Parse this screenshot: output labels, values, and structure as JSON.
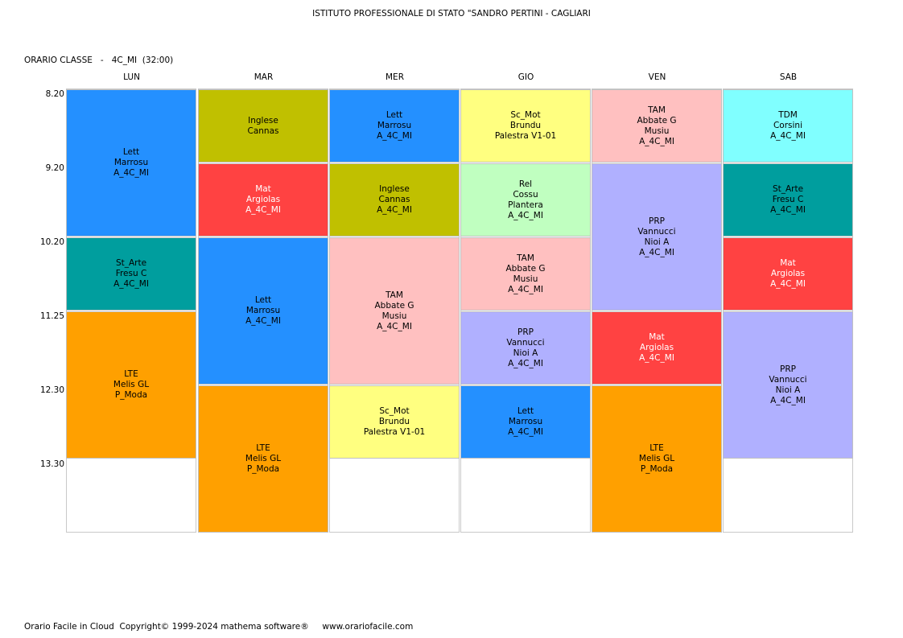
{
  "header": {
    "school": "ISTITUTO PROFESSIONALE DI STATO \"SANDRO PERTINI - CAGLIARI",
    "class_label": "ORARIO CLASSE   -   4C_MI  (32:00)"
  },
  "days": [
    "LUN",
    "MAR",
    "MER",
    "GIO",
    "VEN",
    "SAB"
  ],
  "times": [
    "8.20",
    "9.20",
    "10.20",
    "11.25",
    "12.30",
    "13.30"
  ],
  "colors": {
    "blue": "#2490ff",
    "olive": "#c0c000",
    "red": "#ff4242",
    "teal": "#009e9e",
    "orange": "#ffa000",
    "yellow": "#ffff80",
    "pink": "#ffc0c0",
    "lightgreen": "#c0ffc0",
    "lavender": "#b0b0ff",
    "cyan": "#80ffff"
  },
  "schedule": [
    [
      {
        "start": 0,
        "span": 2,
        "color": "blue",
        "lines": [
          "Lett",
          "Marrosu",
          "A_4C_MI"
        ]
      },
      {
        "start": 2,
        "span": 1,
        "color": "teal",
        "lines": [
          "St_Arte",
          "Fresu C",
          "A_4C_MI"
        ]
      },
      {
        "start": 3,
        "span": 2,
        "color": "orange",
        "lines": [
          "LTE",
          "Melis GL",
          "P_Moda"
        ]
      }
    ],
    [
      {
        "start": 0,
        "span": 1,
        "color": "olive",
        "lines": [
          "Inglese",
          "Cannas"
        ]
      },
      {
        "start": 1,
        "span": 1,
        "color": "red",
        "lines": [
          "Mat",
          "Argiolas",
          "A_4C_MI"
        ]
      },
      {
        "start": 2,
        "span": 2,
        "color": "blue",
        "lines": [
          "Lett",
          "Marrosu",
          "A_4C_MI"
        ]
      },
      {
        "start": 4,
        "span": 2,
        "color": "orange",
        "lines": [
          "LTE",
          "Melis GL",
          "P_Moda"
        ]
      }
    ],
    [
      {
        "start": 0,
        "span": 1,
        "color": "blue",
        "lines": [
          "Lett",
          "Marrosu",
          "A_4C_MI"
        ]
      },
      {
        "start": 1,
        "span": 1,
        "color": "olive",
        "lines": [
          "Inglese",
          "Cannas",
          "A_4C_MI"
        ]
      },
      {
        "start": 2,
        "span": 2,
        "color": "pink",
        "lines": [
          "TAM",
          "Abbate G",
          "Musiu",
          "A_4C_MI"
        ]
      },
      {
        "start": 4,
        "span": 1,
        "color": "yellow",
        "lines": [
          "Sc_Mot",
          "Brundu",
          "Palestra V1-01"
        ]
      }
    ],
    [
      {
        "start": 0,
        "span": 1,
        "color": "yellow",
        "lines": [
          "Sc_Mot",
          "Brundu",
          "Palestra V1-01"
        ]
      },
      {
        "start": 1,
        "span": 1,
        "color": "lightgreen",
        "lines": [
          "Rel",
          "Cossu",
          "Plantera",
          "A_4C_MI"
        ]
      },
      {
        "start": 2,
        "span": 1,
        "color": "pink",
        "lines": [
          "TAM",
          "Abbate G",
          "Musiu",
          "A_4C_MI"
        ]
      },
      {
        "start": 3,
        "span": 1,
        "color": "lavender",
        "lines": [
          "PRP",
          "Vannucci",
          "Nioi A",
          "A_4C_MI"
        ]
      },
      {
        "start": 4,
        "span": 1,
        "color": "blue",
        "lines": [
          "Lett",
          "Marrosu",
          "A_4C_MI"
        ]
      }
    ],
    [
      {
        "start": 0,
        "span": 1,
        "color": "pink",
        "lines": [
          "TAM",
          "Abbate G",
          "Musiu",
          "A_4C_MI"
        ]
      },
      {
        "start": 1,
        "span": 2,
        "color": "lavender",
        "lines": [
          "PRP",
          "Vannucci",
          "Nioi A",
          "A_4C_MI"
        ]
      },
      {
        "start": 3,
        "span": 1,
        "color": "red",
        "lines": [
          "Mat",
          "Argiolas",
          "A_4C_MI"
        ]
      },
      {
        "start": 4,
        "span": 2,
        "color": "orange",
        "lines": [
          "LTE",
          "Melis GL",
          "P_Moda"
        ]
      }
    ],
    [
      {
        "start": 0,
        "span": 1,
        "color": "cyan",
        "lines": [
          "TDM",
          "Corsini",
          "A_4C_MI"
        ]
      },
      {
        "start": 1,
        "span": 1,
        "color": "teal",
        "lines": [
          "St_Arte",
          "Fresu C",
          "A_4C_MI"
        ]
      },
      {
        "start": 2,
        "span": 1,
        "color": "red",
        "lines": [
          "Mat",
          "Argiolas",
          "A_4C_MI"
        ]
      },
      {
        "start": 3,
        "span": 2,
        "color": "lavender",
        "lines": [
          "PRP",
          "Vannucci",
          "Nioi A",
          "A_4C_MI"
        ]
      }
    ]
  ],
  "footer": "Orario Facile in Cloud  Copyright© 1999-2024 mathema software®     www.orariofacile.com"
}
